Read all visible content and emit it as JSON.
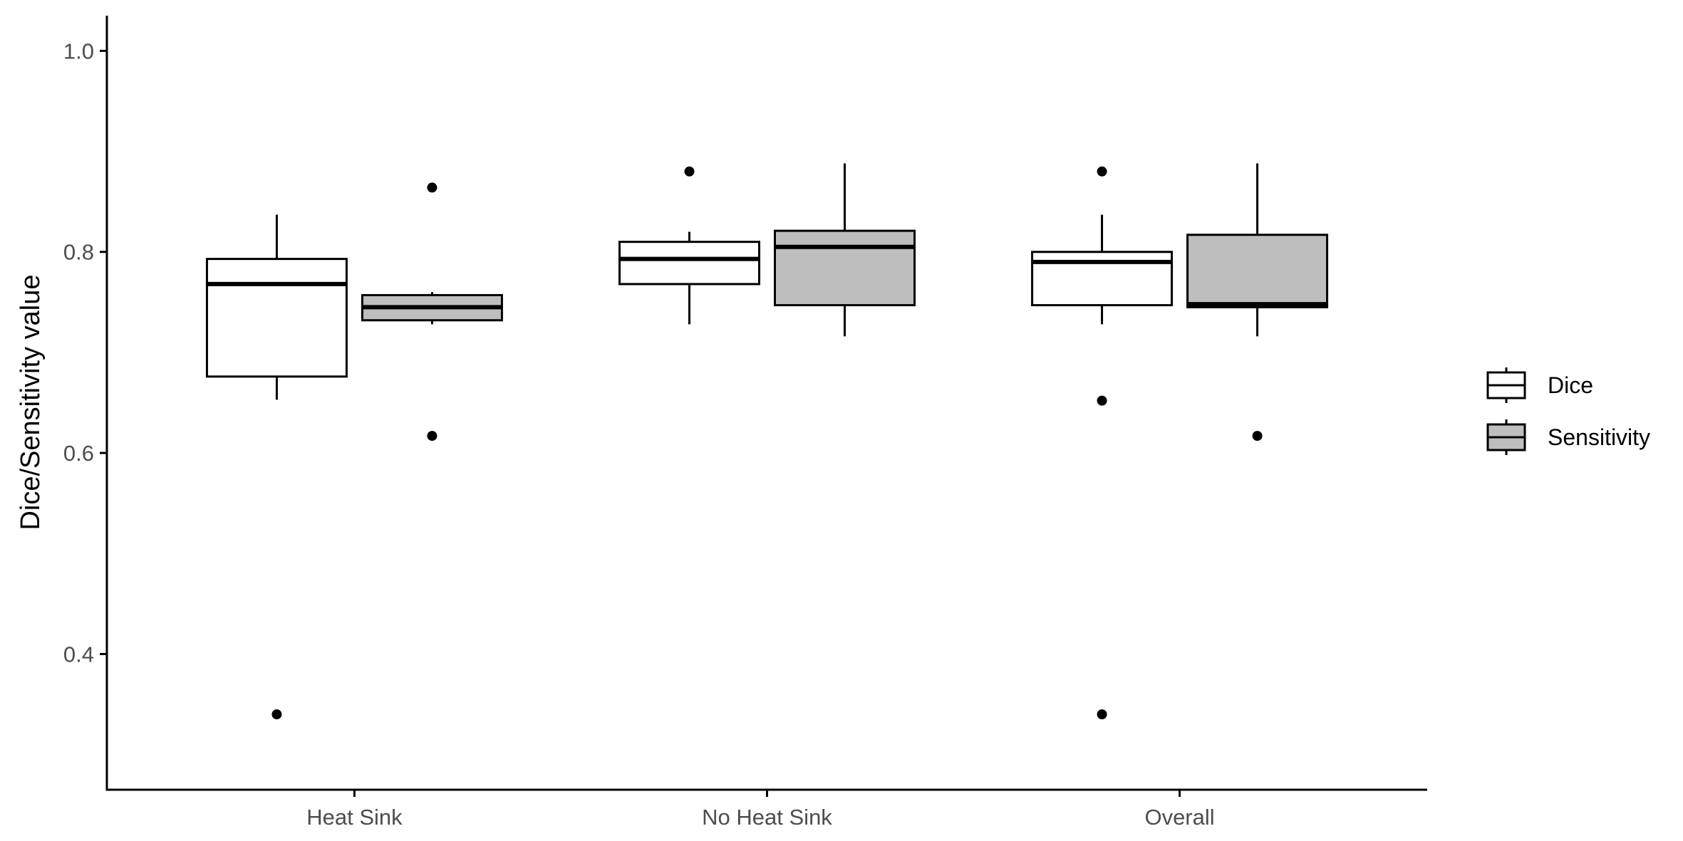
{
  "chart_data": {
    "type": "boxplot",
    "title": "",
    "xlabel": "",
    "ylabel": "Dice/Sensitivity value",
    "ylim": [
      0.265,
      1.035
    ],
    "yticks": [
      "0.4",
      "0.6",
      "0.8",
      "1.0"
    ],
    "categories": [
      "Heat Sink",
      "No Heat Sink",
      "Overall"
    ],
    "legend_position": "right",
    "grid": false,
    "series": [
      {
        "name": "Dice",
        "fill": "#ffffff",
        "boxes": [
          {
            "category": "Heat Sink",
            "whisker_low": 0.653,
            "q1": 0.676,
            "median": 0.768,
            "q3": 0.793,
            "whisker_high": 0.837,
            "outliers": [
              0.34
            ]
          },
          {
            "category": "No Heat Sink",
            "whisker_low": 0.728,
            "q1": 0.768,
            "median": 0.793,
            "q3": 0.81,
            "whisker_high": 0.82,
            "outliers": [
              0.88
            ]
          },
          {
            "category": "Overall",
            "whisker_low": 0.728,
            "q1": 0.747,
            "median": 0.79,
            "q3": 0.8,
            "whisker_high": 0.837,
            "outliers": [
              0.652,
              0.34,
              0.88
            ]
          }
        ]
      },
      {
        "name": "Sensitivity",
        "fill": "#bebebe",
        "boxes": [
          {
            "category": "Heat Sink",
            "whisker_low": 0.728,
            "q1": 0.732,
            "median": 0.745,
            "q3": 0.757,
            "whisker_high": 0.76,
            "outliers": [
              0.864,
              0.617
            ]
          },
          {
            "category": "No Heat Sink",
            "whisker_low": 0.716,
            "q1": 0.747,
            "median": 0.805,
            "q3": 0.821,
            "whisker_high": 0.888,
            "outliers": []
          },
          {
            "category": "Overall",
            "whisker_low": 0.716,
            "q1": 0.745,
            "median": 0.748,
            "q3": 0.817,
            "whisker_high": 0.888,
            "outliers": [
              0.617
            ]
          }
        ]
      }
    ]
  }
}
